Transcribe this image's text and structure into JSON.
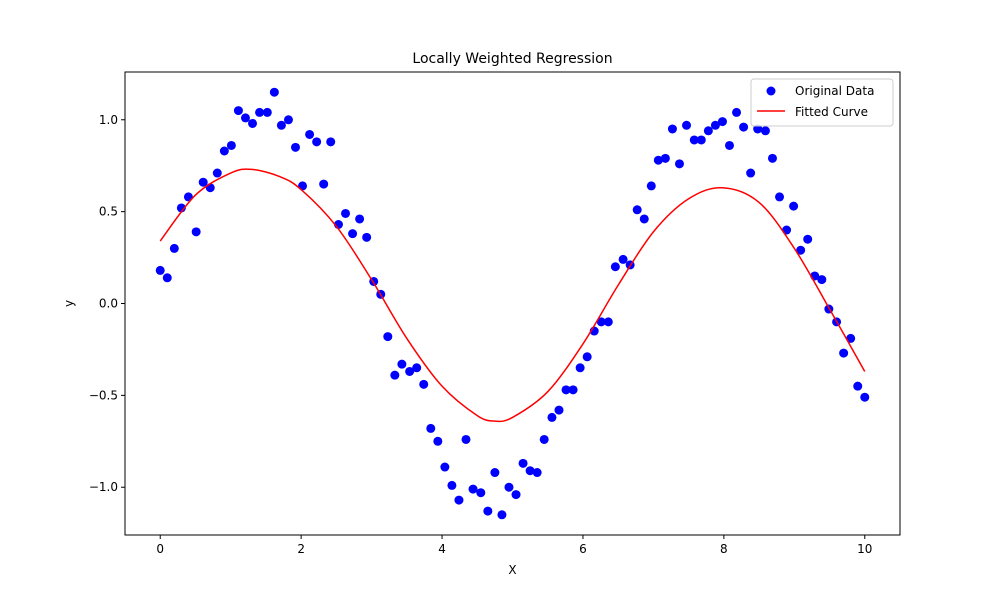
{
  "chart_data": {
    "type": "scatter",
    "title": "Locally Weighted Regression",
    "xlabel": "X",
    "ylabel": "y",
    "xlim": [
      -0.5,
      10.5
    ],
    "ylim": [
      -1.26,
      1.26
    ],
    "xticks": [
      0,
      2,
      4,
      6,
      8,
      10
    ],
    "xtick_labels": [
      "0",
      "2",
      "4",
      "6",
      "8",
      "10"
    ],
    "yticks": [
      -1.0,
      -0.5,
      0.0,
      0.5,
      1.0
    ],
    "ytick_labels": [
      "−1.0",
      "−0.5",
      "0.0",
      "0.5",
      "1.0"
    ],
    "grid": false,
    "legend_position": "top-right",
    "series": [
      {
        "name": "Original Data",
        "kind": "scatter",
        "color": "#0000ff",
        "points": [
          [
            0.0,
            0.18
          ],
          [
            0.1,
            0.14
          ],
          [
            0.2,
            0.3
          ],
          [
            0.3,
            0.52
          ],
          [
            0.4,
            0.58
          ],
          [
            0.51,
            0.39
          ],
          [
            0.61,
            0.66
          ],
          [
            0.71,
            0.63
          ],
          [
            0.81,
            0.71
          ],
          [
            0.91,
            0.83
          ],
          [
            1.01,
            0.86
          ],
          [
            1.11,
            1.05
          ],
          [
            1.21,
            1.01
          ],
          [
            1.31,
            0.98
          ],
          [
            1.41,
            1.04
          ],
          [
            1.52,
            1.04
          ],
          [
            1.62,
            1.15
          ],
          [
            1.72,
            0.97
          ],
          [
            1.82,
            1.0
          ],
          [
            1.92,
            0.85
          ],
          [
            2.02,
            0.64
          ],
          [
            2.12,
            0.92
          ],
          [
            2.22,
            0.88
          ],
          [
            2.32,
            0.65
          ],
          [
            2.42,
            0.88
          ],
          [
            2.53,
            0.43
          ],
          [
            2.63,
            0.49
          ],
          [
            2.73,
            0.38
          ],
          [
            2.83,
            0.46
          ],
          [
            2.93,
            0.36
          ],
          [
            3.03,
            0.12
          ],
          [
            3.13,
            0.05
          ],
          [
            3.23,
            -0.18
          ],
          [
            3.33,
            -0.39
          ],
          [
            3.43,
            -0.33
          ],
          [
            3.54,
            -0.37
          ],
          [
            3.64,
            -0.35
          ],
          [
            3.74,
            -0.44
          ],
          [
            3.84,
            -0.68
          ],
          [
            3.94,
            -0.75
          ],
          [
            4.04,
            -0.89
          ],
          [
            4.14,
            -0.99
          ],
          [
            4.24,
            -1.07
          ],
          [
            4.34,
            -0.74
          ],
          [
            4.44,
            -1.01
          ],
          [
            4.55,
            -1.03
          ],
          [
            4.65,
            -1.13
          ],
          [
            4.75,
            -0.92
          ],
          [
            4.85,
            -1.15
          ],
          [
            4.95,
            -1.0
          ],
          [
            5.05,
            -1.04
          ],
          [
            5.15,
            -0.87
          ],
          [
            5.25,
            -0.91
          ],
          [
            5.35,
            -0.92
          ],
          [
            5.45,
            -0.74
          ],
          [
            5.56,
            -0.62
          ],
          [
            5.66,
            -0.58
          ],
          [
            5.76,
            -0.47
          ],
          [
            5.86,
            -0.47
          ],
          [
            5.96,
            -0.35
          ],
          [
            6.06,
            -0.29
          ],
          [
            6.16,
            -0.15
          ],
          [
            6.26,
            -0.1
          ],
          [
            6.36,
            -0.1
          ],
          [
            6.46,
            0.2
          ],
          [
            6.57,
            0.24
          ],
          [
            6.67,
            0.21
          ],
          [
            6.77,
            0.51
          ],
          [
            6.87,
            0.46
          ],
          [
            6.97,
            0.64
          ],
          [
            7.07,
            0.78
          ],
          [
            7.17,
            0.79
          ],
          [
            7.27,
            0.95
          ],
          [
            7.37,
            0.76
          ],
          [
            7.47,
            0.97
          ],
          [
            7.58,
            0.89
          ],
          [
            7.68,
            0.89
          ],
          [
            7.78,
            0.94
          ],
          [
            7.88,
            0.97
          ],
          [
            7.98,
            0.99
          ],
          [
            8.08,
            0.86
          ],
          [
            8.18,
            1.04
          ],
          [
            8.28,
            0.96
          ],
          [
            8.38,
            0.71
          ],
          [
            8.48,
            0.95
          ],
          [
            8.59,
            0.94
          ],
          [
            8.69,
            0.79
          ],
          [
            8.79,
            0.58
          ],
          [
            8.89,
            0.4
          ],
          [
            8.99,
            0.53
          ],
          [
            9.09,
            0.29
          ],
          [
            9.19,
            0.35
          ],
          [
            9.29,
            0.15
          ],
          [
            9.39,
            0.13
          ],
          [
            9.49,
            -0.03
          ],
          [
            9.6,
            -0.1
          ],
          [
            9.7,
            -0.27
          ],
          [
            9.8,
            -0.19
          ],
          [
            9.9,
            -0.45
          ],
          [
            10.0,
            -0.51
          ]
        ]
      },
      {
        "name": "Fitted Curve",
        "kind": "line",
        "color": "#ff0000",
        "points": [
          [
            0.0,
            0.34
          ],
          [
            0.5,
            0.59
          ],
          [
            1.0,
            0.71
          ],
          [
            1.3,
            0.73
          ],
          [
            1.7,
            0.69
          ],
          [
            2.0,
            0.62
          ],
          [
            2.5,
            0.42
          ],
          [
            3.0,
            0.13
          ],
          [
            3.5,
            -0.19
          ],
          [
            4.0,
            -0.45
          ],
          [
            4.5,
            -0.61
          ],
          [
            4.75,
            -0.64
          ],
          [
            5.0,
            -0.62
          ],
          [
            5.5,
            -0.48
          ],
          [
            6.0,
            -0.22
          ],
          [
            6.5,
            0.1
          ],
          [
            7.0,
            0.39
          ],
          [
            7.5,
            0.57
          ],
          [
            7.98,
            0.63
          ],
          [
            8.5,
            0.55
          ],
          [
            9.0,
            0.3
          ],
          [
            9.5,
            -0.03
          ],
          [
            10.0,
            -0.37
          ]
        ]
      }
    ]
  }
}
